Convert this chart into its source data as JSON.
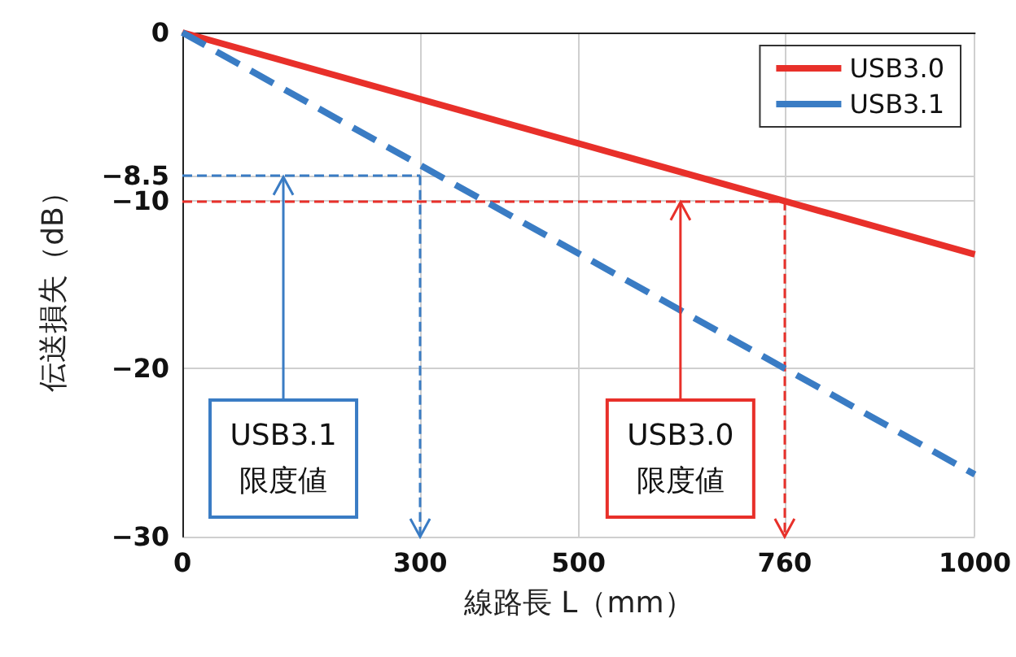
{
  "chart_data": {
    "type": "line",
    "xlabel": "線路長 L（mm）",
    "ylabel": "伝送損失（dB）",
    "xlim": [
      0,
      1000
    ],
    "xticks": [
      0,
      300,
      500,
      760,
      1000
    ],
    "ylim": [
      -30,
      0
    ],
    "yticks": [
      0,
      -8.5,
      -10,
      -20,
      -30
    ],
    "grid": true,
    "x": [
      0,
      1000
    ],
    "legend": "top right",
    "marker": "none",
    "series": [
      {
        "name": "USB3.0",
        "color": "#e8302a",
        "values": [
          0,
          -13.2
        ],
        "line_style": "solid"
      },
      {
        "name": "USB3.1",
        "color": "#3a7cc4",
        "values": [
          0,
          -26.3
        ],
        "line_style": "dashed"
      }
    ],
    "ref_lines": [
      {
        "axis": "y",
        "value": -8.5,
        "color": "#3a7cc4",
        "line_style": "dashed"
      },
      {
        "axis": "x",
        "value": 300,
        "color": "#3a7cc4",
        "line_style": "dashed",
        "label": "USB3.1\n限度値"
      },
      {
        "axis": "y",
        "value": -10,
        "color": "#e8302a",
        "line_style": "dashed"
      },
      {
        "axis": "x",
        "value": 760,
        "color": "#e8302a",
        "line_style": "dashed",
        "label": "USB3.0\n限度値"
      }
    ]
  }
}
